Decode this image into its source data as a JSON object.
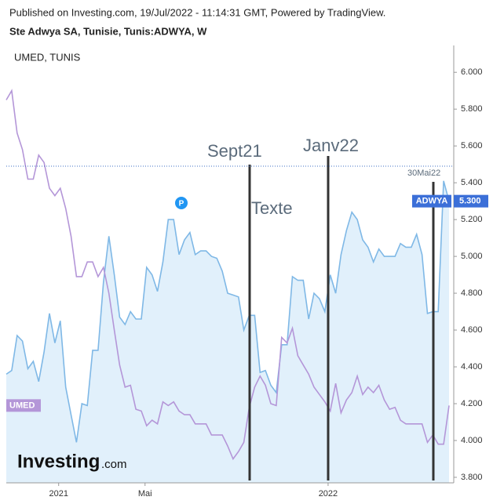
{
  "header": {
    "published": "Published on Investing.com, 19/Jul/2022 - 11:14:31 GMT, Powered by TradingView.",
    "title": "Ste Adwya SA, Tunisie, Tunis:ADWYA, W"
  },
  "chart_data": {
    "type": "line",
    "legend": "UMED, TUNIS",
    "xlim": [
      0,
      82
    ],
    "xticks": [
      {
        "value": 9.7,
        "label": "2021"
      },
      {
        "value": 25.7,
        "label": "Mai"
      },
      {
        "value": 59.6,
        "label": "2022"
      }
    ],
    "ylim": [
      3.77,
      6.15
    ],
    "yticks": [
      {
        "value": 3.8,
        "label": "3.800"
      },
      {
        "value": 4,
        "label": "4.000"
      },
      {
        "value": 4.2,
        "label": "4.200"
      },
      {
        "value": 4.4,
        "label": "4.400"
      },
      {
        "value": 4.6,
        "label": "4.600"
      },
      {
        "value": 4.8,
        "label": "4.800"
      },
      {
        "value": 5,
        "label": "5.000"
      },
      {
        "value": 5.2,
        "label": "5.200"
      },
      {
        "value": 5.4,
        "label": "5.400"
      },
      {
        "value": 5.6,
        "label": "5.600"
      },
      {
        "value": 5.8,
        "label": "5.800"
      },
      {
        "value": 6,
        "label": "6.000"
      }
    ],
    "series": [
      {
        "name": "ADWYA",
        "color": "#7fb8e6",
        "fill": "#e1f0fb",
        "values": [
          4.36,
          4.38,
          4.57,
          4.54,
          4.39,
          4.43,
          4.32,
          4.48,
          4.69,
          4.53,
          4.65,
          4.29,
          4.14,
          3.99,
          4.2,
          4.19,
          4.49,
          4.49,
          4.86,
          5.11,
          4.9,
          4.67,
          4.63,
          4.7,
          4.66,
          4.66,
          4.94,
          4.9,
          4.81,
          4.97,
          5.2,
          5.2,
          5.01,
          5.09,
          5.13,
          5.01,
          5.03,
          5.03,
          5.0,
          4.99,
          4.92,
          4.8,
          4.79,
          4.78,
          4.6,
          4.68,
          4.68,
          4.37,
          4.38,
          4.3,
          4.26,
          4.52,
          4.52,
          4.89,
          4.87,
          4.87,
          4.66,
          4.8,
          4.77,
          4.7,
          4.9,
          4.8,
          5.01,
          5.14,
          5.24,
          5.2,
          5.09,
          5.05,
          4.97,
          5.04,
          5.0,
          5.0,
          5.0,
          5.07,
          5.05,
          5.05,
          5.12,
          5.01,
          4.69,
          4.7,
          4.7,
          5.41,
          5.3
        ]
      },
      {
        "name": "UMED",
        "color": "#b496d8",
        "values": [
          5.85,
          5.9,
          5.67,
          5.58,
          5.42,
          5.42,
          5.55,
          5.51,
          5.37,
          5.33,
          5.37,
          5.26,
          5.11,
          4.89,
          4.89,
          4.97,
          4.97,
          4.89,
          4.94,
          4.8,
          4.6,
          4.41,
          4.29,
          4.3,
          4.17,
          4.16,
          4.08,
          4.11,
          4.09,
          4.21,
          4.19,
          4.21,
          4.16,
          4.14,
          4.14,
          4.09,
          4.09,
          4.09,
          4.03,
          4.03,
          4.03,
          3.97,
          3.9,
          3.94,
          3.99,
          4.18,
          4.29,
          4.35,
          4.3,
          4.2,
          4.19,
          4.56,
          4.53,
          4.61,
          4.46,
          4.41,
          4.36,
          4.29,
          4.25,
          4.21,
          4.16,
          4.31,
          4.15,
          4.22,
          4.26,
          4.35,
          4.25,
          4.29,
          4.26,
          4.3,
          4.22,
          4.17,
          4.18,
          4.11,
          4.09,
          4.09,
          4.09,
          4.09,
          3.99,
          4.03,
          3.98,
          3.98,
          4.19
        ]
      }
    ],
    "price_line": 5.49,
    "price_tag": {
      "value": 5.3,
      "label": "5.300"
    },
    "annotations": [
      "Sept21",
      "Janv22",
      "Texte",
      "30Mai22"
    ],
    "marker": "P"
  },
  "logo": {
    "name": "Investing",
    "suffix": ".com"
  }
}
